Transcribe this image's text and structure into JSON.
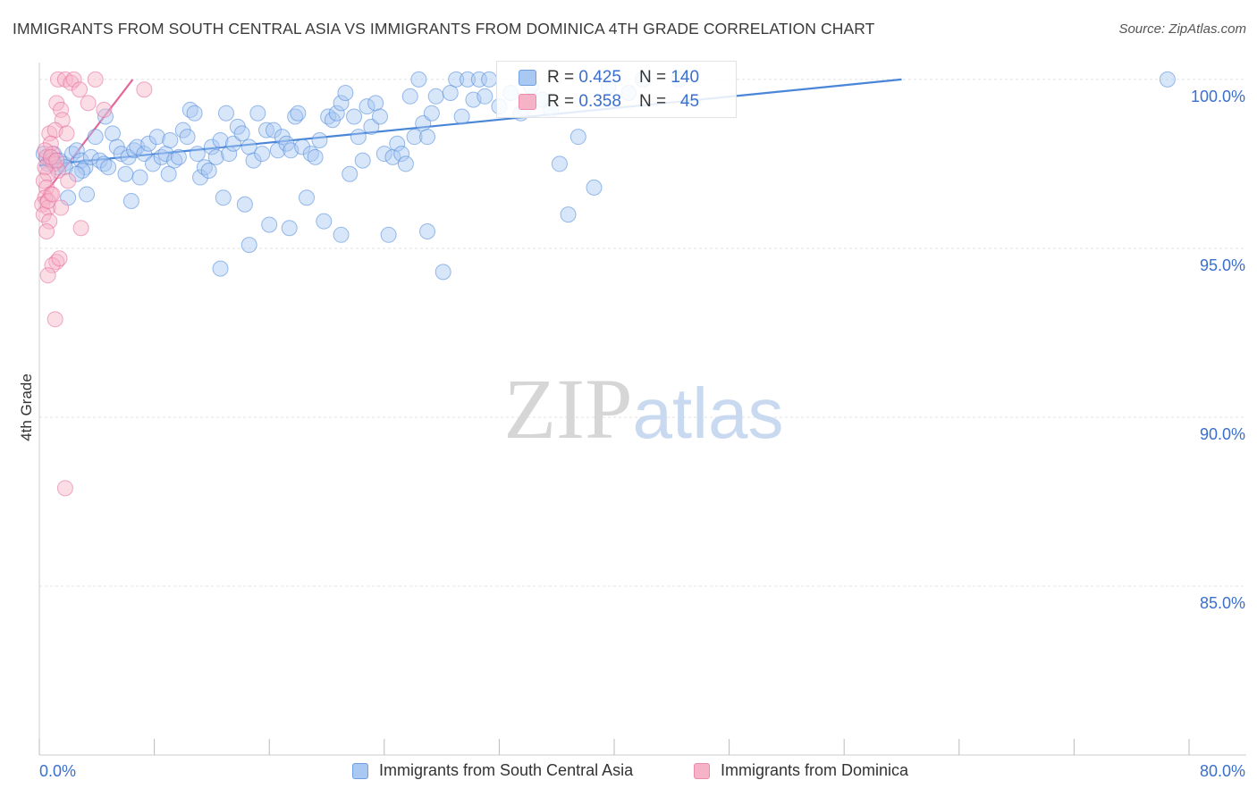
{
  "header": {
    "title": "IMMIGRANTS FROM SOUTH CENTRAL ASIA VS IMMIGRANTS FROM DOMINICA 4TH GRADE CORRELATION CHART",
    "source": "Source: ZipAtlas.com"
  },
  "watermark": {
    "zip": "ZIP",
    "atlas": "atlas"
  },
  "stats_legend": {
    "rows": [
      {
        "r_label": "R =",
        "r_value": "0.425",
        "n_label": "N =",
        "n_value": "140",
        "color": "#a9c8f2"
      },
      {
        "r_label": "R =",
        "r_value": "0.358",
        "n_label": "N =",
        "n_value": "45",
        "color": "#f6b3c8"
      }
    ]
  },
  "bottom_legend": {
    "items": [
      {
        "label": "Immigrants from South Central Asia",
        "color": "#a9c8f2"
      },
      {
        "label": "Immigrants from Dominica",
        "color": "#f6b3c8"
      }
    ]
  },
  "chart_data": {
    "type": "scatter",
    "title": "IMMIGRANTS FROM SOUTH CENTRAL ASIA VS IMMIGRANTS FROM DOMINICA 4TH GRADE CORRELATION CHART",
    "xlabel": "",
    "ylabel": "4th Grade",
    "xlim": [
      0,
      80
    ],
    "ylim": [
      80,
      100.5
    ],
    "x_tick_labels": [
      "0.0%",
      "80.0%"
    ],
    "y_ticks": [
      85,
      90,
      95,
      100
    ],
    "y_tick_labels": [
      "85.0%",
      "90.0%",
      "95.0%",
      "100.0%"
    ],
    "grid": true,
    "series": [
      {
        "name": "Immigrants from South Central Asia",
        "color": "#4a86d8",
        "fill": "#a9c8f2",
        "trend": [
          [
            0,
            97.45
          ],
          [
            60,
            100.0
          ]
        ],
        "points": [
          [
            0.3,
            97.8
          ],
          [
            0.5,
            97.7
          ],
          [
            0.6,
            97.5
          ],
          [
            0.8,
            97.6
          ],
          [
            1.0,
            97.8
          ],
          [
            1.2,
            97.4
          ],
          [
            1.4,
            97.6
          ],
          [
            1.7,
            97.5
          ],
          [
            2.0,
            96.5
          ],
          [
            2.3,
            97.8
          ],
          [
            2.6,
            97.9
          ],
          [
            2.9,
            97.6
          ],
          [
            3.2,
            97.4
          ],
          [
            3.3,
            96.6
          ],
          [
            3.6,
            97.7
          ],
          [
            3.9,
            98.3
          ],
          [
            4.2,
            97.6
          ],
          [
            4.5,
            97.5
          ],
          [
            4.8,
            97.4
          ],
          [
            5.1,
            98.4
          ],
          [
            5.4,
            98.0
          ],
          [
            5.7,
            97.8
          ],
          [
            6.0,
            97.2
          ],
          [
            6.2,
            97.7
          ],
          [
            6.4,
            96.4
          ],
          [
            6.6,
            97.9
          ],
          [
            6.8,
            98.0
          ],
          [
            7.0,
            97.1
          ],
          [
            7.3,
            97.8
          ],
          [
            7.6,
            98.1
          ],
          [
            7.9,
            97.5
          ],
          [
            8.2,
            98.3
          ],
          [
            8.5,
            97.7
          ],
          [
            8.8,
            97.8
          ],
          [
            9.1,
            98.2
          ],
          [
            9.4,
            97.6
          ],
          [
            9.7,
            97.7
          ],
          [
            10.0,
            98.5
          ],
          [
            10.3,
            98.3
          ],
          [
            10.5,
            99.1
          ],
          [
            10.8,
            99.0
          ],
          [
            11.0,
            97.8
          ],
          [
            11.2,
            97.1
          ],
          [
            11.5,
            97.4
          ],
          [
            11.8,
            97.3
          ],
          [
            12.0,
            98.0
          ],
          [
            12.3,
            97.7
          ],
          [
            12.6,
            98.2
          ],
          [
            12.8,
            96.5
          ],
          [
            13.0,
            99.0
          ],
          [
            13.2,
            97.8
          ],
          [
            13.5,
            98.1
          ],
          [
            13.8,
            98.6
          ],
          [
            14.1,
            98.4
          ],
          [
            14.3,
            96.3
          ],
          [
            14.6,
            98.0
          ],
          [
            14.9,
            97.6
          ],
          [
            15.2,
            99.0
          ],
          [
            15.5,
            97.8
          ],
          [
            15.8,
            98.5
          ],
          [
            16.0,
            95.7
          ],
          [
            16.3,
            98.5
          ],
          [
            16.6,
            97.9
          ],
          [
            16.9,
            98.3
          ],
          [
            17.2,
            98.1
          ],
          [
            17.5,
            97.9
          ],
          [
            17.8,
            98.9
          ],
          [
            18.0,
            99.0
          ],
          [
            18.3,
            98.0
          ],
          [
            18.6,
            96.5
          ],
          [
            18.9,
            97.8
          ],
          [
            19.2,
            97.7
          ],
          [
            19.5,
            98.2
          ],
          [
            19.8,
            95.8
          ],
          [
            20.1,
            98.9
          ],
          [
            20.4,
            98.8
          ],
          [
            20.7,
            99.0
          ],
          [
            21.0,
            99.3
          ],
          [
            21.3,
            99.6
          ],
          [
            21.6,
            97.2
          ],
          [
            21.9,
            98.9
          ],
          [
            22.2,
            98.3
          ],
          [
            22.5,
            97.6
          ],
          [
            22.8,
            99.2
          ],
          [
            23.1,
            98.6
          ],
          [
            23.4,
            99.3
          ],
          [
            23.7,
            98.9
          ],
          [
            24.0,
            97.8
          ],
          [
            24.3,
            95.4
          ],
          [
            24.6,
            97.7
          ],
          [
            24.9,
            98.1
          ],
          [
            25.2,
            97.8
          ],
          [
            25.5,
            97.5
          ],
          [
            25.8,
            99.5
          ],
          [
            26.1,
            98.3
          ],
          [
            26.4,
            100.0
          ],
          [
            26.7,
            98.7
          ],
          [
            27.0,
            98.3
          ],
          [
            27.3,
            99.0
          ],
          [
            27.6,
            99.5
          ],
          [
            28.1,
            94.3
          ],
          [
            28.6,
            99.6
          ],
          [
            29.0,
            100.0
          ],
          [
            29.4,
            98.9
          ],
          [
            29.8,
            100.0
          ],
          [
            30.2,
            99.4
          ],
          [
            30.6,
            100.0
          ],
          [
            31.0,
            99.5
          ],
          [
            31.3,
            100.0
          ],
          [
            32.0,
            99.2
          ],
          [
            32.8,
            99.6
          ],
          [
            33.5,
            99.0
          ],
          [
            34.2,
            99.8
          ],
          [
            35.0,
            99.4
          ],
          [
            35.6,
            99.1
          ],
          [
            36.2,
            97.5
          ],
          [
            36.8,
            96.0
          ],
          [
            37.5,
            98.3
          ],
          [
            38.6,
            96.8
          ],
          [
            39.6,
            99.8
          ],
          [
            41.0,
            99.6
          ],
          [
            42.0,
            100.0
          ],
          [
            44.5,
            100.0
          ],
          [
            12.6,
            94.4
          ],
          [
            17.4,
            95.6
          ],
          [
            14.6,
            95.1
          ],
          [
            9.0,
            97.2
          ],
          [
            3.0,
            97.3
          ],
          [
            1.8,
            97.4
          ],
          [
            0.9,
            97.6
          ],
          [
            2.6,
            97.2
          ],
          [
            78.5,
            100.0
          ],
          [
            4.6,
            98.9
          ],
          [
            21.0,
            95.4
          ],
          [
            27.0,
            95.5
          ]
        ]
      },
      {
        "name": "Immigrants from Dominica",
        "color": "#e4679a",
        "fill": "#f6b3c8",
        "trend": [
          [
            0,
            96.4
          ],
          [
            6.5,
            100.0
          ]
        ],
        "points": [
          [
            1.3,
            100.0
          ],
          [
            1.8,
            100.0
          ],
          [
            2.2,
            99.9
          ],
          [
            2.4,
            100.0
          ],
          [
            2.8,
            99.7
          ],
          [
            3.9,
            100.0
          ],
          [
            1.2,
            99.3
          ],
          [
            1.5,
            99.1
          ],
          [
            3.4,
            99.3
          ],
          [
            1.6,
            98.8
          ],
          [
            0.7,
            98.4
          ],
          [
            1.1,
            98.5
          ],
          [
            0.8,
            98.1
          ],
          [
            0.5,
            97.7
          ],
          [
            0.9,
            97.8
          ],
          [
            1.0,
            97.5
          ],
          [
            1.3,
            97.3
          ],
          [
            0.6,
            97.2
          ],
          [
            0.4,
            97.4
          ],
          [
            0.3,
            97.0
          ],
          [
            0.5,
            96.8
          ],
          [
            0.8,
            96.6
          ],
          [
            0.4,
            96.5
          ],
          [
            0.2,
            96.3
          ],
          [
            0.6,
            96.2
          ],
          [
            0.3,
            96.0
          ],
          [
            0.7,
            95.8
          ],
          [
            0.5,
            95.5
          ],
          [
            1.5,
            96.2
          ],
          [
            2.0,
            97.0
          ],
          [
            2.9,
            95.6
          ],
          [
            1.2,
            94.6
          ],
          [
            0.9,
            94.5
          ],
          [
            0.6,
            94.2
          ],
          [
            1.4,
            94.7
          ],
          [
            1.1,
            92.9
          ],
          [
            1.8,
            87.9
          ],
          [
            7.3,
            99.7
          ],
          [
            4.5,
            99.1
          ],
          [
            1.9,
            98.4
          ],
          [
            0.4,
            97.9
          ],
          [
            0.8,
            97.7
          ],
          [
            1.2,
            97.6
          ],
          [
            0.6,
            96.4
          ],
          [
            0.9,
            96.6
          ]
        ]
      }
    ]
  }
}
